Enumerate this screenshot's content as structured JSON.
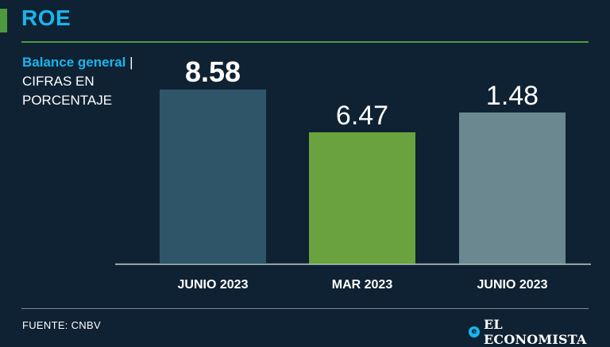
{
  "header": {
    "title": "ROE"
  },
  "side_label": {
    "highlight": "Balance general",
    "separator": "|",
    "rest": "CIFRAS EN PORCENTAJE"
  },
  "footer": {
    "source": "FUENTE: CNBV",
    "brand": "EL ECONOMISTA"
  },
  "colors": {
    "background": "#0f2233",
    "accent_blue": "#19b5ec",
    "accent_green": "#4e9a3f"
  },
  "chart_data": {
    "type": "bar",
    "title": "ROE",
    "categories": [
      "JUNIO 2023",
      "MAR 2023",
      "JUNIO 2023"
    ],
    "values": [
      8.58,
      6.47,
      1.48
    ],
    "data_labels": [
      "8.58",
      "6.47",
      "1.48"
    ],
    "bar_colors": [
      "#2e5568",
      "#6aa33e",
      "#6b8891"
    ],
    "label_bold": [
      true,
      false,
      false
    ],
    "grid": false,
    "legend": "none"
  }
}
